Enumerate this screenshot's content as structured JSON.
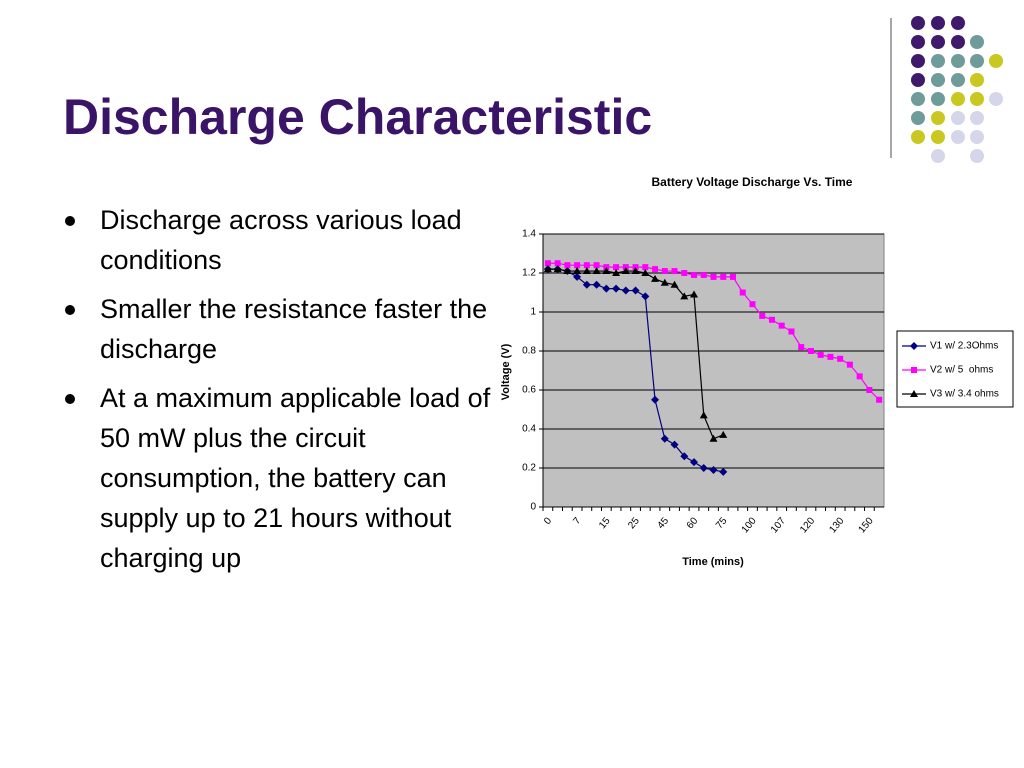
{
  "slide": {
    "title": "Discharge Characteristic",
    "bullets": [
      "Discharge across various load conditions",
      "Smaller the resistance faster the discharge",
      "At a maximum applicable load of 50 mW plus the circuit consumption, the battery can supply up to 21 hours without charging up"
    ]
  },
  "chart_data": {
    "type": "line",
    "title": "Battery Voltage Discharge Vs. Time",
    "x_label": "Time (mins)",
    "y_label": "Voltage (V)",
    "categories": [
      "0",
      null,
      null,
      "7",
      null,
      null,
      "15",
      null,
      null,
      "25",
      null,
      null,
      "45",
      null,
      null,
      "60",
      null,
      null,
      "75",
      null,
      null,
      "100",
      null,
      null,
      "107",
      null,
      null,
      "120",
      null,
      null,
      "130",
      null,
      null,
      "150",
      null
    ],
    "series": [
      {
        "name": "V1 w/ 2.3Ohms",
        "color": "#000080",
        "marker": "diamond",
        "values": [
          1.22,
          1.22,
          1.21,
          1.18,
          1.14,
          1.14,
          1.12,
          1.12,
          1.11,
          1.11,
          1.08,
          0.55,
          0.35,
          0.32,
          0.26,
          0.23,
          0.2,
          0.19,
          0.18,
          null,
          null,
          null,
          null,
          null,
          null,
          null,
          null,
          null,
          null,
          null,
          null,
          null,
          null,
          null,
          null
        ]
      },
      {
        "name": "V2 w/ 5  ohms",
        "color": "#ff00ff",
        "marker": "square",
        "values": [
          1.25,
          1.25,
          1.24,
          1.24,
          1.24,
          1.24,
          1.23,
          1.23,
          1.23,
          1.23,
          1.23,
          1.22,
          1.21,
          1.21,
          1.2,
          1.19,
          1.19,
          1.18,
          1.18,
          1.18,
          1.1,
          1.04,
          0.98,
          0.96,
          0.93,
          0.9,
          0.82,
          0.8,
          0.78,
          0.77,
          0.76,
          0.73,
          0.67,
          0.6,
          0.55
        ]
      },
      {
        "name": "V3 w/ 3.4 ohms",
        "color": "#000000",
        "marker": "triangle",
        "values": [
          1.22,
          1.22,
          1.21,
          1.21,
          1.21,
          1.21,
          1.21,
          1.2,
          1.21,
          1.21,
          1.2,
          1.17,
          1.15,
          1.14,
          1.08,
          1.09,
          0.47,
          0.35,
          0.37,
          null,
          null,
          null,
          null,
          null,
          null,
          null,
          null,
          null,
          null,
          null,
          null,
          null,
          null,
          null,
          null
        ]
      }
    ],
    "ylim": [
      0,
      1.4
    ],
    "yticks": [
      0,
      0.2,
      0.4,
      0.6,
      0.8,
      1,
      1.2,
      1.4
    ],
    "grid": true,
    "legend": "right"
  }
}
